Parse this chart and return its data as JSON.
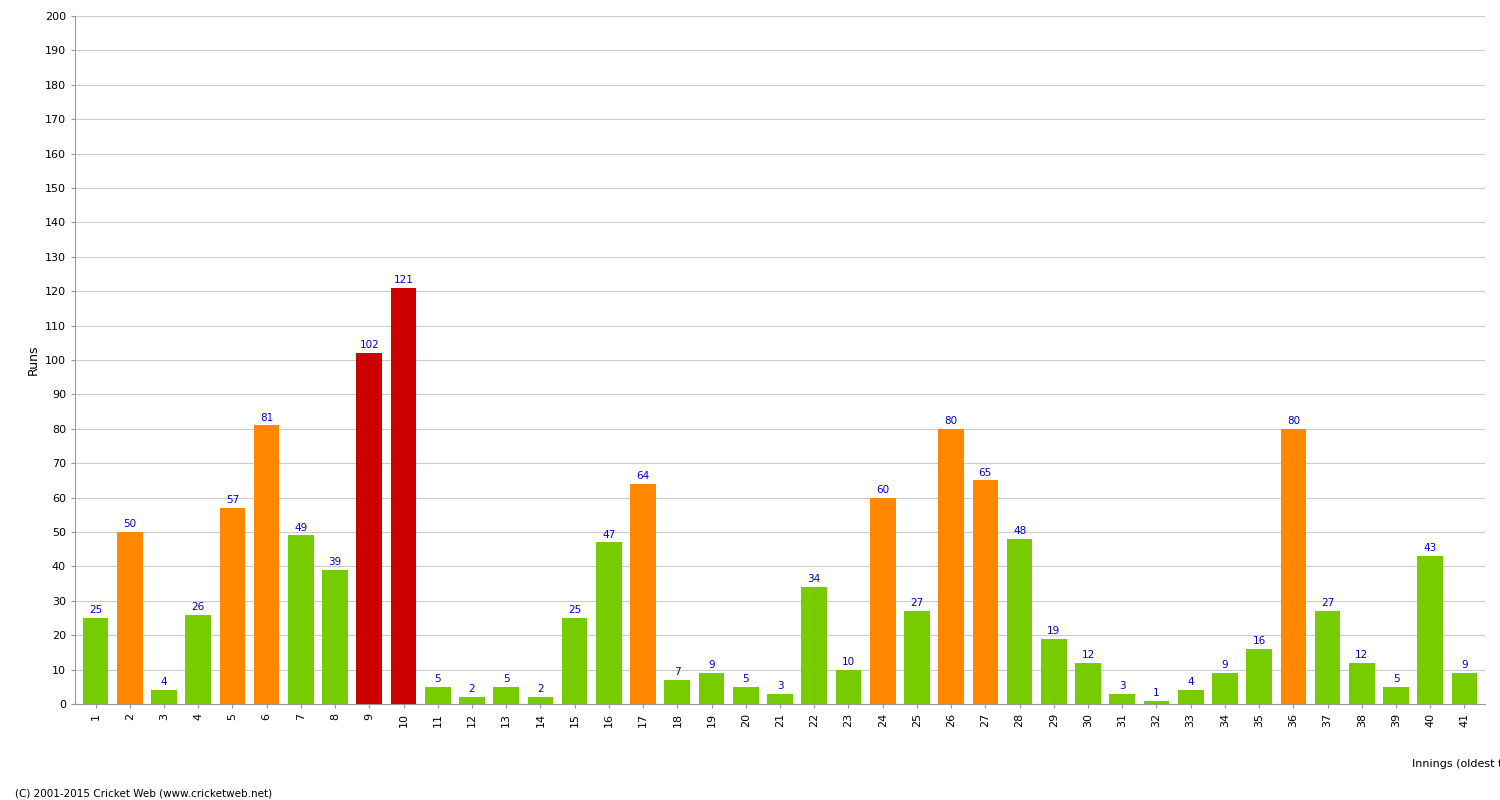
{
  "innings": [
    1,
    2,
    3,
    4,
    5,
    6,
    7,
    8,
    9,
    10,
    11,
    12,
    13,
    14,
    15,
    16,
    17,
    18,
    19,
    20,
    21,
    22,
    23,
    24,
    25,
    26,
    27,
    28,
    29,
    30,
    31,
    32,
    33,
    34,
    35,
    36,
    37,
    38,
    39,
    40,
    41
  ],
  "values": [
    25,
    50,
    4,
    26,
    57,
    81,
    49,
    39,
    102,
    121,
    5,
    2,
    5,
    2,
    25,
    47,
    64,
    7,
    9,
    5,
    3,
    34,
    10,
    60,
    27,
    80,
    65,
    48,
    19,
    12,
    3,
    1,
    4,
    9,
    16,
    80,
    27,
    12,
    5,
    43,
    9
  ],
  "colors": [
    "#77cc00",
    "#ff8800",
    "#77cc00",
    "#77cc00",
    "#ff8800",
    "#ff8800",
    "#77cc00",
    "#77cc00",
    "#cc0000",
    "#cc0000",
    "#77cc00",
    "#77cc00",
    "#77cc00",
    "#77cc00",
    "#77cc00",
    "#77cc00",
    "#ff8800",
    "#77cc00",
    "#77cc00",
    "#77cc00",
    "#77cc00",
    "#77cc00",
    "#77cc00",
    "#ff8800",
    "#77cc00",
    "#ff8800",
    "#ff8800",
    "#77cc00",
    "#77cc00",
    "#77cc00",
    "#77cc00",
    "#77cc00",
    "#77cc00",
    "#77cc00",
    "#77cc00",
    "#ff8800",
    "#77cc00",
    "#77cc00",
    "#77cc00",
    "#77cc00",
    "#77cc00"
  ],
  "xlabel": "Innings (oldest to newest)",
  "ylabel": "Runs",
  "ylim": [
    0,
    200
  ],
  "yticks": [
    0,
    10,
    20,
    30,
    40,
    50,
    60,
    70,
    80,
    90,
    100,
    110,
    120,
    130,
    140,
    150,
    160,
    170,
    180,
    190,
    200
  ],
  "bg_color": "#ffffff",
  "grid_color": "#cccccc",
  "label_color": "#0000cc",
  "footer": "(C) 2001-2015 Cricket Web (www.cricketweb.net)"
}
